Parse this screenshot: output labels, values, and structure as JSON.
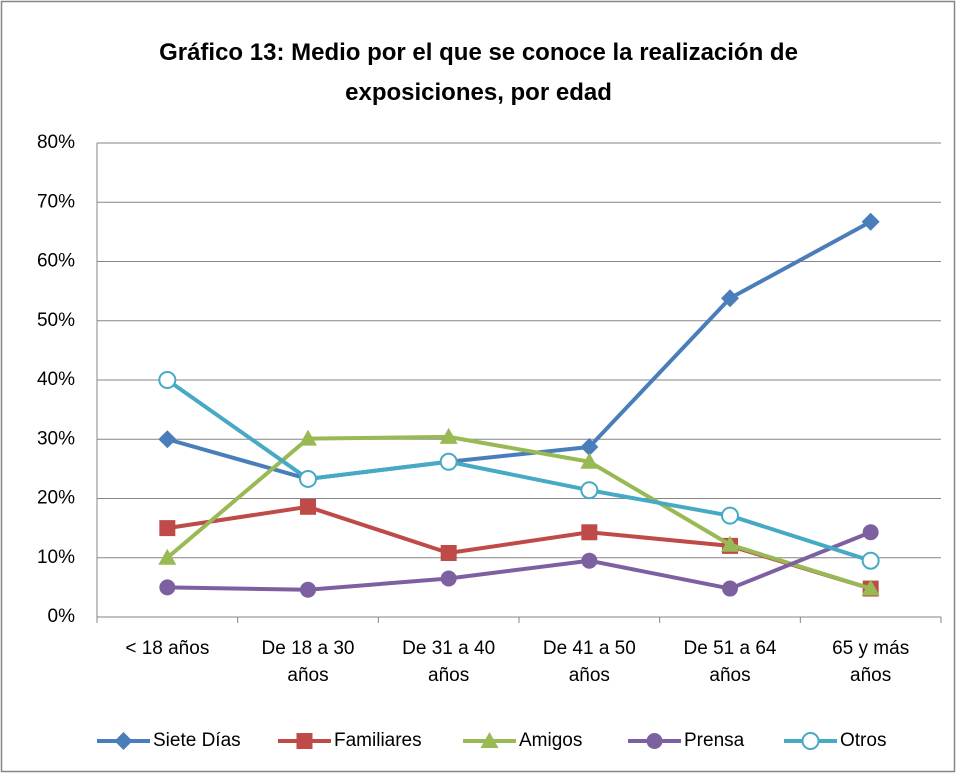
{
  "chart_data": {
    "type": "line",
    "title": "Gráfico 13: Medio por el que se conoce la realización de exposiciones, por edad",
    "categories": [
      "< 18 años",
      "De 18 a 30 años",
      "De 31 a 40 años",
      "De 41 a 50 años",
      "De 51 a 64 años",
      "65 y más años"
    ],
    "series": [
      {
        "name": "Siete Días",
        "color": "#4a7ebb",
        "marker": "diamond",
        "values": [
          30,
          23.3,
          26.2,
          28.7,
          53.8,
          66.7
        ]
      },
      {
        "name": "Familiares",
        "color": "#be4b48",
        "marker": "square",
        "values": [
          15,
          18.6,
          10.8,
          14.3,
          12,
          4.8
        ]
      },
      {
        "name": "Amigos",
        "color": "#98b954",
        "marker": "triangle",
        "values": [
          10,
          30.1,
          30.4,
          26.2,
          12.2,
          4.8
        ]
      },
      {
        "name": "Prensa",
        "color": "#7d60a0",
        "marker": "circle",
        "values": [
          5,
          4.6,
          6.5,
          9.5,
          4.8,
          14.3
        ]
      },
      {
        "name": "Otros",
        "color": "#46aac5",
        "marker": "open-circle",
        "values": [
          40,
          23.3,
          26.2,
          21.4,
          17.1,
          9.5
        ]
      }
    ],
    "ylim": [
      0,
      80
    ],
    "yticks": [
      {
        "value": 0,
        "label": "0%"
      },
      {
        "value": 10,
        "label": "10%"
      },
      {
        "value": 20,
        "label": "20%"
      },
      {
        "value": 30,
        "label": "30%"
      },
      {
        "value": 40,
        "label": "40%"
      },
      {
        "value": 50,
        "label": "50%"
      },
      {
        "value": 60,
        "label": "60%"
      },
      {
        "value": 70,
        "label": "70%"
      },
      {
        "value": 80,
        "label": "80%"
      }
    ],
    "grid": true,
    "legend": "bottom"
  }
}
